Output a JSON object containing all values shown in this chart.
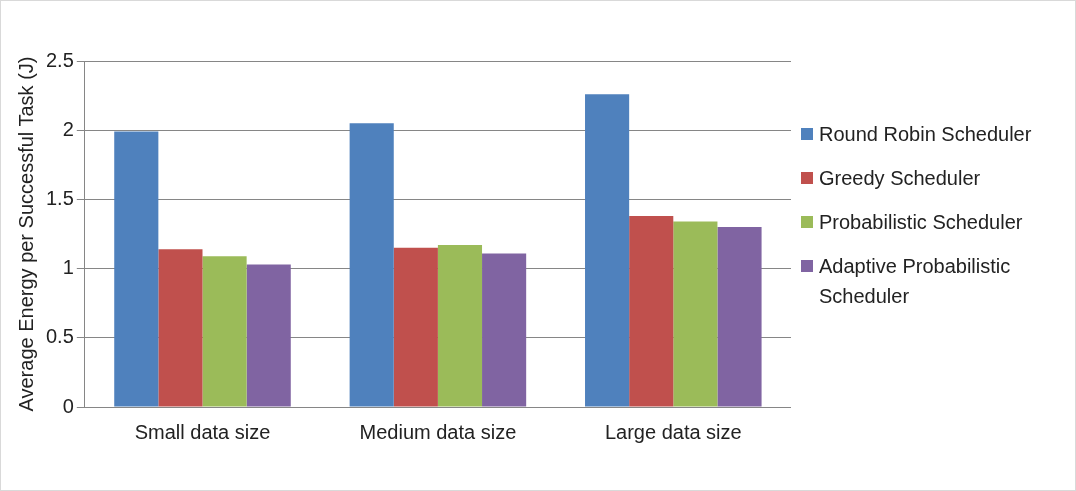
{
  "chart_data": {
    "type": "bar",
    "ylabel": "Average Energy per Successful Task (J)",
    "categories": [
      "Small data size",
      "Medium data size",
      "Large data size"
    ],
    "series": [
      {
        "name": "Round Robin Scheduler",
        "color": "#4f81bd",
        "values": [
          1.99,
          2.05,
          2.26
        ]
      },
      {
        "name": "Greedy Scheduler",
        "color": "#c0504d",
        "values": [
          1.14,
          1.15,
          1.38
        ]
      },
      {
        "name": "Probabilistic Scheduler",
        "color": "#9bbb59",
        "values": [
          1.09,
          1.17,
          1.34
        ]
      },
      {
        "name": "Adaptive Probabilistic Scheduler",
        "color": "#8064a2",
        "values": [
          1.03,
          1.11,
          1.3
        ]
      }
    ],
    "ylim": [
      0,
      2.5
    ],
    "yticks": [
      0,
      0.5,
      1,
      1.5,
      2,
      2.5
    ],
    "grid": "y",
    "legend": "right"
  }
}
